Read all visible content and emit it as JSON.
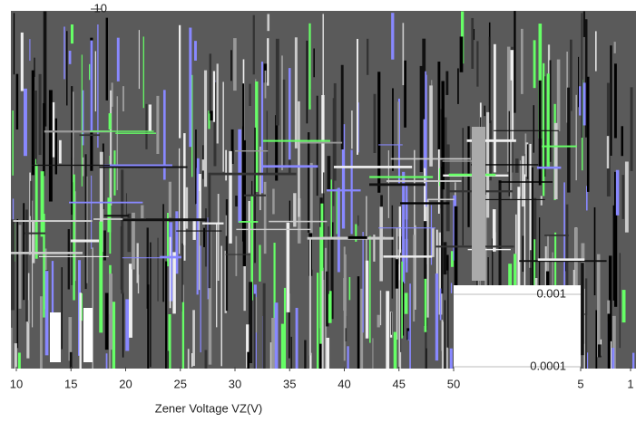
{
  "chart_data": [
    {
      "type": "line",
      "xlabel": "Zener Voltage   VZ(V)",
      "xlim": [
        10,
        50
      ],
      "xticks": [
        10,
        15,
        20,
        25,
        30,
        35,
        40,
        45,
        50
      ],
      "ylim": [
        0.0001,
        10
      ],
      "yticks": [
        10
      ],
      "log_y": true
    },
    {
      "type": "line",
      "xlim": [
        5,
        1
      ],
      "xticks": [
        5,
        1
      ],
      "ylim": [
        0.0001,
        0.001
      ],
      "log_y": true,
      "yticks": [
        {
          "value": 0.001,
          "label": "0.001"
        },
        {
          "value": 0.0001,
          "label": "0.0001"
        }
      ]
    }
  ]
}
